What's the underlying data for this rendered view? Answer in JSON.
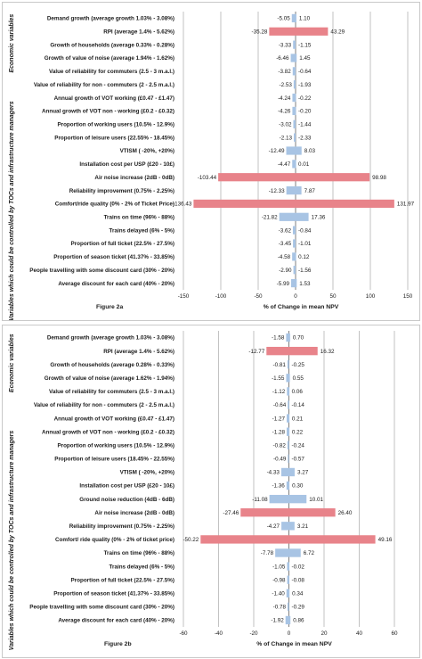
{
  "figures": [
    {
      "name": "Figure 2a",
      "xlabel": "% of Change in  mean NPV"
    },
    {
      "name": "Figure 2b",
      "xlabel": "% of Change in  mean NPV"
    }
  ],
  "groups": {
    "economic": "Economic variables",
    "controlled": "Variables which could be controlled by TOCs and infrastructure managers"
  },
  "colors": {
    "small": "#a8c4e4",
    "large": "#e8838a",
    "grid": "#9a9a9a",
    "axis": "#7f7f7f"
  },
  "chart_data": [
    {
      "type": "bar",
      "orientation": "horizontal",
      "title": "Figure 2a",
      "xlabel": "% of Change in  mean NPV",
      "xlim": [
        -150,
        150
      ],
      "xticks": [
        -150,
        -100,
        -50,
        0,
        50,
        100,
        150
      ],
      "xtick_labels": [
        "-150",
        "-100",
        "-50",
        "0",
        "50",
        "100",
        "150"
      ],
      "economic_rows": 11,
      "categories": [
        "Demand growth (average growth 1.03% - 3.08%)",
        "RPI (average 1.4% - 5.62%)",
        "Growth of households (average 0.33% - 0.28%)",
        "Growth of value of noise (average 1.94% - 1.62%)",
        "Value of reliability for commuters (2.5 - 3 m.a.l.)",
        "Value of reliability for non - commuters (2 - 2.5 m.a.l.)",
        "Annual growth of VOT working (£0.47 - £1.47)",
        "Annual growth of VOT non - working (£0.2 - £0.32)",
        "Proportion of working users (10.5% - 12.9%)",
        "Proportion of leisure users (22.55% - 18.45%)",
        "VTISM ( -20%, +20%)",
        "Installation cost per USP (£20 - 10£)",
        "Air noise increase (2dB - 0dB)",
        "Reliability improvement (0.75% - 2.25%)",
        "Comfort/ride quality (0% - 2% of Ticket Price)",
        "Trains on time (96% - 88%)",
        "Trains delayed (6% - 5%)",
        "Proportion of full ticket (22.5% - 27.5%)",
        "Proportion of season ticket (41.37% - 33.85%)",
        "People travelling with some discount card (30% - 20%)",
        "Average discount for each card (40% - 20%)"
      ],
      "series": [
        {
          "values": [
            -5.05,
            -35.28,
            -3.33,
            -6.46,
            -3.82,
            -2.53,
            -4.24,
            -4.26,
            -3.02,
            -2.13,
            -12.49,
            -4.47,
            -103.44,
            -12.33,
            -136.43,
            -21.82,
            -3.62,
            -3.45,
            -4.58,
            -2.9,
            -5.99
          ]
        },
        {
          "values": [
            1.1,
            43.29,
            -1.15,
            1.45,
            -0.64,
            -1.93,
            -0.22,
            -0.2,
            -1.44,
            -2.33,
            8.03,
            0.01,
            98.98,
            7.87,
            131.97,
            17.36,
            -0.84,
            -1.01,
            0.12,
            -1.56,
            1.53
          ]
        }
      ],
      "low_labels": [
        "-5.05",
        "-35.28",
        "-3.33",
        "-6.46",
        "-3.82",
        "-2.53",
        "-4.24",
        "-4.26",
        "-3.02",
        "-2.13",
        "-12.49",
        "-4.47",
        "-103.44",
        "-12.33",
        "-136.43",
        "-21.82",
        "-3.62",
        "-3.45",
        "-4.58",
        "-2.90",
        "-5.99"
      ],
      "high_labels": [
        "1.10",
        "43.29",
        "-1.15",
        "1.45",
        "-0.64",
        "-1.93",
        "-0.22",
        "-0.20",
        "-1.44",
        "-2.33",
        "8.03",
        "0.01",
        "98.98",
        "7.87",
        "131.97",
        "17.36",
        "-0.84",
        "-1.01",
        "0.12",
        "-1.56",
        "1.53"
      ],
      "highlight_threshold": 30
    },
    {
      "type": "bar",
      "orientation": "horizontal",
      "title": "Figure 2b",
      "xlabel": "% of Change in  mean NPV",
      "xlim": [
        -60,
        60
      ],
      "xticks": [
        -60,
        -40,
        -20,
        0,
        20,
        40,
        60
      ],
      "xtick_labels": [
        "-60",
        "-40",
        "-20",
        "0",
        "20",
        "40",
        "60"
      ],
      "economic_rows": 11,
      "categories": [
        "Demand growth (average growth 1.03% - 3.08%)",
        "RPI (average 1.4% - 5.62%)",
        "Growth of households (average 0.28% - 0.33%)",
        "Growth of value of noise (average 1.62% - 1.94%)",
        "Value of reliability for commuters (2.5 - 3 m.a.l.)",
        "Value of reliability for non - commuters (2 - 2.5 m.a.l.)",
        "Annual growth of VOT working (£0.47 - £1.47)",
        "Annual growth of VOT non - working (£0.2 - £0.32)",
        "Proportion of working users (10.5% - 12.9%)",
        "Proportion of leisure users (18.45% - 22.55%)",
        "VTISM ( -20%, +20%)",
        "Installation cost per USP (£20 - 10£)",
        "Ground noise reduction (4dB - 6dB)",
        "Air noise increase (2dB - 0dB)",
        "Reliability improvement (0.75% - 2.25%)",
        "Comfort/ ride quality (0% - 2% of ticket price)",
        "Trains on time (96% - 88%)",
        "Trains delayed (6% - 5%)",
        "Proportion of full ticket (22.5% - 27.5%)",
        "Proportion of season ticket (41.37% - 33.85%)",
        "People travelling with some discount card (30% - 20%)",
        "Average discount for each card (40% - 20%)"
      ],
      "series": [
        {
          "values": [
            -1.58,
            -12.77,
            -0.81,
            -1.55,
            -1.12,
            -0.64,
            -1.27,
            -1.28,
            -0.82,
            -0.49,
            -4.33,
            -1.36,
            -11.08,
            -27.46,
            -4.27,
            -50.22,
            -7.78,
            -1.05,
            -0.98,
            -1.4,
            -0.78,
            -1.92
          ]
        },
        {
          "values": [
            0.7,
            16.32,
            -0.25,
            0.55,
            0.06,
            -0.14,
            0.21,
            0.22,
            -0.24,
            -0.57,
            3.27,
            0.3,
            10.01,
            26.4,
            3.21,
            49.16,
            6.72,
            -0.02,
            -0.08,
            0.34,
            -0.29,
            0.86
          ]
        }
      ],
      "low_labels": [
        "-1.58",
        "-12.77",
        "-0.81",
        "-1.55",
        "-1.12",
        "-0.64",
        "-1.27",
        "-1.28",
        "-0.82",
        "-0.49",
        "-4.33",
        "-1.36",
        "-11.08",
        "-27.46",
        "-4.27",
        "-50.22",
        "-7.78",
        "-1.05",
        "-0.98",
        "-1.40",
        "-0.78",
        "-1.92"
      ],
      "high_labels": [
        "0.70",
        "16.32",
        "-0.25",
        "0.55",
        "0.06",
        "-0.14",
        "0.21",
        "0.22",
        "-0.24",
        "-0.57",
        "3.27",
        "0.30",
        "10.01",
        "26.40",
        "3.21",
        "49.16",
        "6.72",
        "-0.02",
        "-0.08",
        "0.34",
        "-0.29",
        "0.86"
      ],
      "highlight_threshold": 12
    }
  ]
}
